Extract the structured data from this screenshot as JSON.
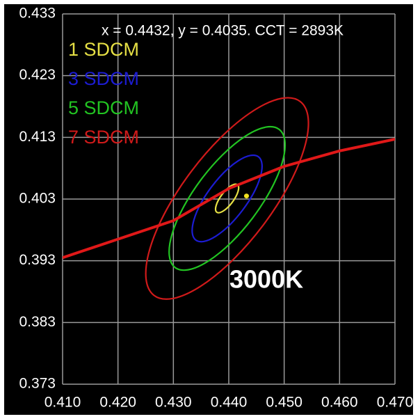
{
  "chart_data": {
    "type": "chromaticity",
    "readout": "x = 0.4432, y = 0.4035. CCT = 2893K",
    "annotation": "3000K",
    "xlim": [
      0.41,
      0.47
    ],
    "ylim": [
      0.373,
      0.433
    ],
    "xticks": [
      {
        "value": 0.41,
        "label": "0.410"
      },
      {
        "value": 0.42,
        "label": "0.420"
      },
      {
        "value": 0.43,
        "label": "0.430"
      },
      {
        "value": 0.44,
        "label": "0.440"
      },
      {
        "value": 0.45,
        "label": "0.450"
      },
      {
        "value": 0.46,
        "label": "0.460"
      },
      {
        "value": 0.47,
        "label": "0.470"
      }
    ],
    "yticks": [
      0.373,
      0.383,
      0.393,
      0.403,
      0.413,
      0.423,
      0.433
    ],
    "grid": true,
    "ellipses": [
      {
        "name": "1 SDCM",
        "color": "#e6e045",
        "cx": 0.4397,
        "cy": 0.4031,
        "a": 0.0031,
        "b": 0.00116,
        "angle": 53
      },
      {
        "name": "3 SDCM",
        "color": "#1c1cd2",
        "cx": 0.4397,
        "cy": 0.4031,
        "a": 0.0094,
        "b": 0.0035,
        "angle": 53
      },
      {
        "name": "5 SDCM",
        "color": "#22c422",
        "cx": 0.4397,
        "cy": 0.4031,
        "a": 0.0156,
        "b": 0.0058,
        "angle": 53
      },
      {
        "name": "7 SDCM",
        "color": "#d01a1a",
        "cx": 0.4397,
        "cy": 0.4031,
        "a": 0.0219,
        "b": 0.0081,
        "angle": 53
      }
    ],
    "locus": {
      "color": "#e01818",
      "x": [
        0.41,
        0.42,
        0.43,
        0.44,
        0.45,
        0.46,
        0.47
      ],
      "y": [
        0.3935,
        0.3965,
        0.3995,
        0.4047,
        0.4083,
        0.4108,
        0.4127
      ]
    },
    "point": {
      "color": "#f0e020",
      "x": 0.4432,
      "y": 0.4035
    }
  }
}
